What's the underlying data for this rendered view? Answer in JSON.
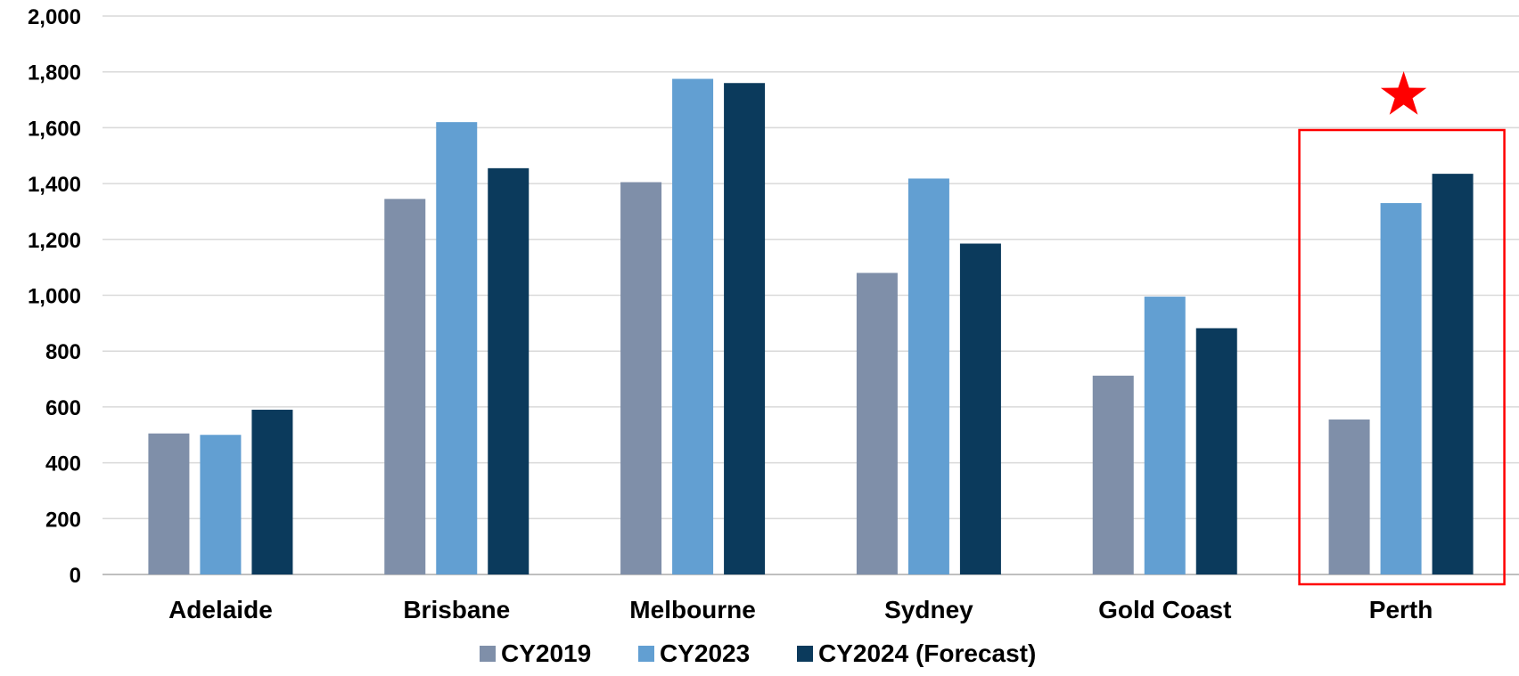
{
  "chart_data": {
    "type": "bar",
    "title": "",
    "xlabel": "",
    "ylabel": "",
    "ylim": [
      0,
      2000
    ],
    "yticks": [
      "0",
      "200",
      "400",
      "600",
      "800",
      "1,000",
      "1,200",
      "1,400",
      "1,600",
      "1,800",
      "2,000"
    ],
    "ytick_values": [
      0,
      200,
      400,
      600,
      800,
      1000,
      1200,
      1400,
      1600,
      1800,
      2000
    ],
    "grid": true,
    "legend_position": "bottom",
    "categories": [
      "Adelaide",
      "Brisbane",
      "Melbourne",
      "Sydney",
      "Gold Coast",
      "Perth"
    ],
    "series": [
      {
        "name": "CY2019",
        "color": "#7f8fa9",
        "values": [
          505,
          1345,
          1405,
          1080,
          712,
          555
        ]
      },
      {
        "name": "CY2023",
        "color": "#629fd2",
        "values": [
          500,
          1620,
          1775,
          1418,
          995,
          1330
        ]
      },
      {
        "name": "CY2024 (Forecast)",
        "color": "#0b3a5c",
        "values": [
          590,
          1455,
          1760,
          1185,
          882,
          1435
        ]
      }
    ],
    "highlight": {
      "category": "Perth",
      "marker": "red-star",
      "color": "#ff0000"
    }
  }
}
